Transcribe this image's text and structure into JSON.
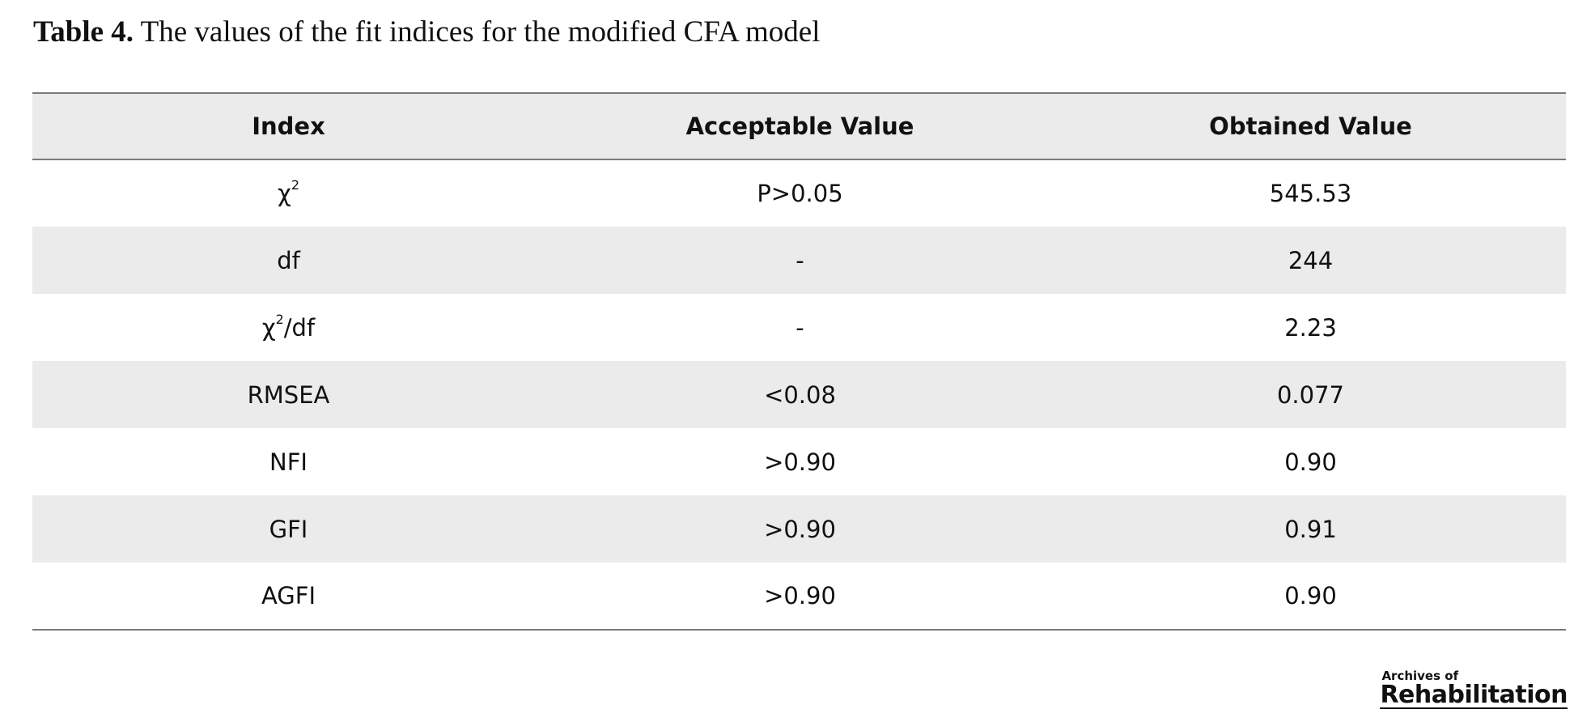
{
  "caption": {
    "label": "Table 4.",
    "text": "The values of the fit indices for the modified CFA model"
  },
  "table": {
    "headers": [
      "Index",
      "Acceptable Value",
      "Obtained Value"
    ],
    "rows": [
      {
        "index_base": "χ",
        "index_sup": "2",
        "index_suffix": "",
        "acceptable": "P>0.05",
        "obtained": "545.53"
      },
      {
        "index_base": "df",
        "index_sup": "",
        "index_suffix": "",
        "acceptable": "-",
        "obtained": "244"
      },
      {
        "index_base": "χ",
        "index_sup": "2",
        "index_suffix": "/df",
        "acceptable": "-",
        "obtained": "2.23"
      },
      {
        "index_base": "RMSEA",
        "index_sup": "",
        "index_suffix": "",
        "acceptable": "<0.08",
        "obtained": "0.077"
      },
      {
        "index_base": "NFI",
        "index_sup": "",
        "index_suffix": "",
        "acceptable": ">0.90",
        "obtained": "0.90"
      },
      {
        "index_base": "GFI",
        "index_sup": "",
        "index_suffix": "",
        "acceptable": ">0.90",
        "obtained": "0.91"
      },
      {
        "index_base": "AGFI",
        "index_sup": "",
        "index_suffix": "",
        "acceptable": ">0.90",
        "obtained": "0.90"
      }
    ]
  },
  "logo": {
    "line1": "Archives of",
    "line2": "Rehabilitation"
  }
}
